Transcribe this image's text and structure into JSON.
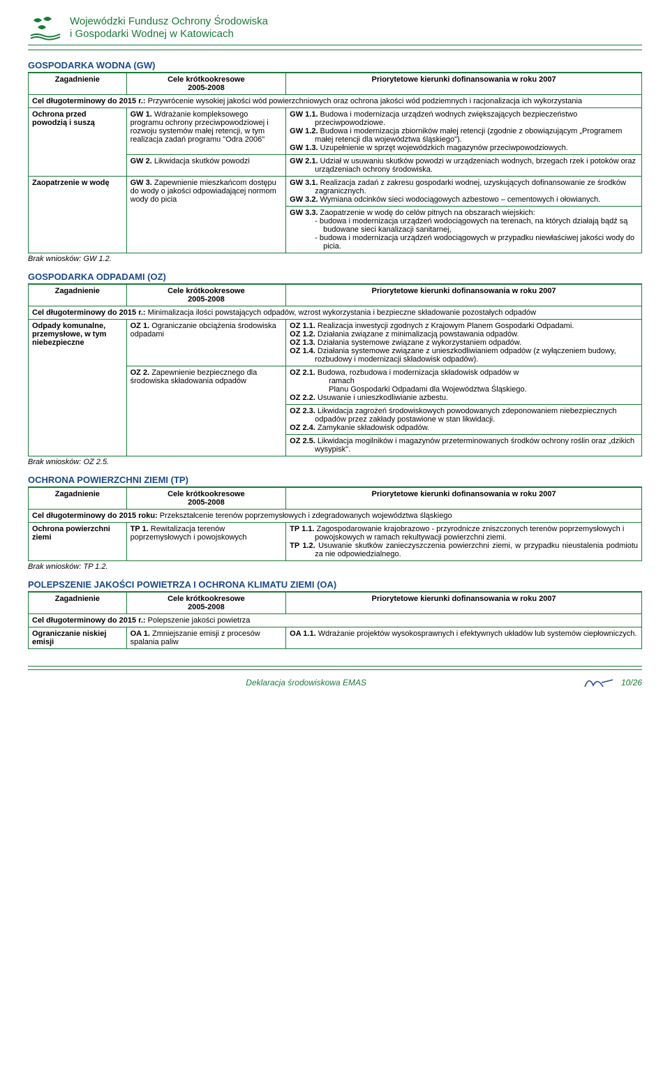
{
  "header": {
    "line1": "Wojewódzki Fundusz Ochrony Środowiska",
    "line2": "i Gospodarki Wodnej w Katowicach",
    "logo_color": "#1a7a3a"
  },
  "colors": {
    "section_title": "#1a4a8a",
    "border": "#1a7a3a",
    "text": "#000000",
    "footer_text": "#1a7a3a",
    "sig": "#2a4aa0",
    "background": "#ffffff"
  },
  "typography": {
    "body_fontsize": 11,
    "section_title_fontsize": 13,
    "header_fontsize": 15
  },
  "tables": {
    "columns": [
      "Zagadnienie",
      "Cele krótkookresowe 2005-2008",
      "Priorytetowe kierunki dofinansowania w roku 2007"
    ],
    "col_widths": [
      "16%",
      "26%",
      "58%"
    ]
  },
  "sections": [
    {
      "title": "GOSPODARKA WODNA (GW)",
      "longterm": "Cel długoterminowy do 2015 r.: Przywrócenie wysokiej jakości wód powierzchniowych oraz ochrona jakości wód podziemnych i racjonalizacja ich wykorzystania",
      "rows": [
        {
          "c1": "Ochrona przed powodzią i suszą",
          "c2_items": [
            {
              "label": "GW 1.",
              "text": "Wdrażanie kompleksowego programu ochrony przeciwpowodziowej i rozwoju systemów małej retencji, w tym realizacja zadań programu \"Odra 2006\"",
              "c3": [
                {
                  "label": "GW 1.1.",
                  "text": "Budowa i modernizacja urządzeń wodnych zwiększających bezpieczeństwo przeciwpowodziowe."
                },
                {
                  "label": "GW 1.2.",
                  "text": "Budowa i modernizacja zbiorników małej retencji (zgodnie z obowiązującym „Programem małej retencji dla województwa śląskiego\")."
                },
                {
                  "label": "GW 1.3.",
                  "text": "Uzupełnienie w sprzęt wojewódzkich magazynów przeciwpowodziowych."
                }
              ]
            },
            {
              "label": "GW 2.",
              "text": "Likwidacja skutków powodzi",
              "c3": [
                {
                  "label": "GW 2.1.",
                  "text": "Udział w usuwaniu skutków powodzi w urządzeniach wodnych, brzegach rzek i potoków oraz urządzeniach ochrony środowiska."
                }
              ]
            }
          ]
        },
        {
          "c1": "Zaopatrzenie w wodę",
          "c2_items": [
            {
              "label": "GW 3.",
              "text": "Zapewnienie mieszkańcom dostępu do wody o jakości odpowiadającej normom wody do picia",
              "c3": [
                {
                  "label": "GW 3.1.",
                  "text": "Realizacja zadań z zakresu gospodarki wodnej, uzyskujących dofinansowanie ze środków zagranicznych."
                },
                {
                  "label": "GW 3.2.",
                  "text": "Wymiana odcinków sieci wodociągowych azbestowo – cementowych i ołowianych."
                }
              ],
              "c3_extra": {
                "label": "GW 3.3.",
                "text": "Zaopatrzenie w wodę do celów pitnych na obszarach wiejskich:",
                "subs": [
                  "- budowa i modernizacja urządzeń wodociągowych na terenach, na których działają bądź są budowane sieci kanalizacji sanitarnej,",
                  "- budowa i modernizacja urządzeń wodociągowych w przypadku niewłaściwej jakości wody do picia."
                ]
              }
            }
          ]
        }
      ],
      "note": "Brak wniosków: GW 1.2."
    },
    {
      "title": "GOSPODARKA ODPADAMI (OZ)",
      "longterm": "Cel długoterminowy do 2015 r.: Minimalizacja ilości powstających odpadów, wzrost wykorzystania i bezpieczne składowanie pozostałych odpadów",
      "rows": [
        {
          "c1": "Odpady komunalne, przemysłowe, w tym niebezpieczne",
          "c2_items": [
            {
              "label": "OZ 1.",
              "text": "Ograniczanie obciążenia środowiska odpadami",
              "c3": [
                {
                  "label": "OZ 1.1.",
                  "text": "Realizacja inwestycji zgodnych z Krajowym Planem Gospodarki Odpadami."
                },
                {
                  "label": "OZ 1.2.",
                  "text": "Działania związane z minimalizacją powstawania odpadów."
                },
                {
                  "label": "OZ 1.3.",
                  "text": "Działania systemowe związane z wykorzystaniem odpadów."
                },
                {
                  "label": "OZ 1.4.",
                  "text": "Działania systemowe związane z unieszkodliwianiem odpadów (z wyłączeniem budowy, rozbudowy i modernizacji składowisk odpadów)."
                }
              ]
            },
            {
              "label": "OZ 2.",
              "text": "Zapewnienie bezpiecznego dla środowiska składowania odpadów",
              "c3": [
                {
                  "label": "OZ 2.1.",
                  "text": "Budowa, rozbudowa i modernizacja składowisk odpadów w ramach Planu Gospodarki Odpadami dla Województwa Śląskiego.",
                  "special_indent": true
                },
                {
                  "label": "OZ 2.2.",
                  "text": "Usuwanie i unieszkodliwianie azbestu."
                }
              ],
              "c3_block2": [
                {
                  "label": "OZ 2.3.",
                  "text": "Likwidacja zagrożeń środowiskowych powodowanych zdeponowaniem niebezpiecznych odpadów przez zakłady postawione w stan likwidacji."
                },
                {
                  "label": "OZ 2.4.",
                  "text": "Zamykanie składowisk odpadów."
                }
              ],
              "c3_block3": [
                {
                  "label": "OZ 2.5.",
                  "text": "Likwidacja mogilników i magazynów przeterminowanych środków ochrony roślin oraz „dzikich wysypisk\"."
                }
              ]
            }
          ]
        }
      ],
      "note": "Brak wniosków: OZ  2.5."
    },
    {
      "title": "OCHRONA POWIERZCHNI ZIEMI        (TP)",
      "longterm": "Cel długoterminowy do 2015 roku: Przekształcenie terenów poprzemysłowych i zdegradowanych województwa śląskiego",
      "rows": [
        {
          "c1": "Ochrona powierzchni ziemi",
          "c2_items": [
            {
              "label": "TP 1.",
              "text": "Rewitalizacja terenów poprzemysłowych i powojskowych",
              "c3": [
                {
                  "label": "TP 1.1.",
                  "text": "Zagospodarowanie krajobrazowo - przyrodnicze zniszczonych terenów poprzemysłowych i powojskowych w ramach rekultywacji powierzchni ziemi."
                },
                {
                  "label": "TP 1.2.",
                  "text": "Usuwanie skutków zanieczyszczenia powierzchni ziemi, w przypadku nieustalenia podmiotu za nie odpowiedzialnego.",
                  "justify": true
                }
              ]
            }
          ]
        }
      ],
      "note": "Brak wniosków: TP 1.2."
    },
    {
      "title": "POLEPSZENIE JAKOŚCI POWIETRZA I OCHRONA KLIMATU ZIEMI (OA)",
      "longterm": "Cel długoterminowy do 2015 r.: Polepszenie jakości powietrza",
      "rows": [
        {
          "c1": "Ograniczanie niskiej emisji",
          "c2_items": [
            {
              "label": "OA 1.",
              "text": "Zmniejszanie emisji z procesów spalania paliw",
              "c3": [
                {
                  "label": "OA 1.1.",
                  "text": "Wdrażanie projektów wysokosprawnych i efektywnych układów lub systemów ciepłowniczych."
                }
              ]
            }
          ]
        }
      ]
    }
  ],
  "footer": {
    "text": "Deklaracja środowiskowa EMAS",
    "page": "10/26"
  }
}
